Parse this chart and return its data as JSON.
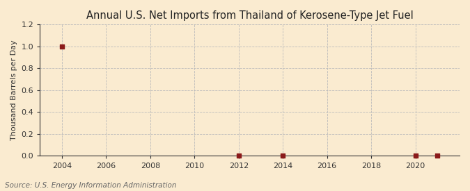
{
  "title": "Annual U.S. Net Imports from Thailand of Kerosene-Type Jet Fuel",
  "ylabel": "Thousand Barrels per Day",
  "source": "Source: U.S. Energy Information Administration",
  "background_color": "#faebd0",
  "plot_bg_color": "#faebd0",
  "marker_color": "#8b1a1a",
  "grid_color": "#bbbbbb",
  "spine_color": "#333333",
  "xlim": [
    2003.0,
    2022.0
  ],
  "ylim": [
    0.0,
    1.2
  ],
  "yticks": [
    0.0,
    0.2,
    0.4,
    0.6,
    0.8,
    1.0,
    1.2
  ],
  "xticks": [
    2004,
    2006,
    2008,
    2010,
    2012,
    2014,
    2016,
    2018,
    2020
  ],
  "data_years": [
    2004,
    2012,
    2014,
    2020,
    2021
  ],
  "data_values": [
    1.0,
    0.0,
    0.0,
    0.0,
    0.0
  ],
  "title_fontsize": 10.5,
  "label_fontsize": 8,
  "tick_fontsize": 8,
  "source_fontsize": 7.5
}
